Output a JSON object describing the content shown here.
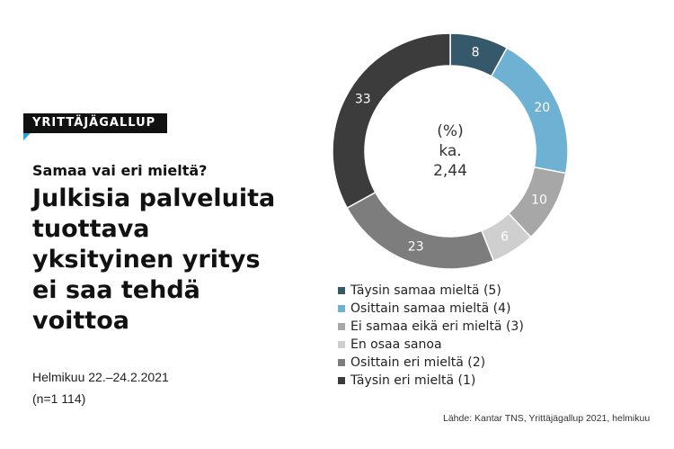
{
  "badge": "YRITTÄJÄGALLUP",
  "subtitle": "Samaa vai eri mieltä?",
  "title": "Julkisia palveluita tuottava yksityinen yritys ei saa tehdä voittoa",
  "date": "Helmikuu 22.–24.2.2021",
  "sample": "(n=1 114)",
  "source": "Lähde: Kantar TNS, Yrittäjägallup 2021, helmikuu",
  "colors": {
    "badge_accent": "#2f9fd8"
  },
  "chart_data": {
    "type": "pie",
    "subtype": "donut",
    "unit": "%",
    "center_text": [
      "(%)",
      "ka.",
      "2,44"
    ],
    "categories": [
      "Täysin samaa mieltä (5)",
      "Osittain samaa mieltä (4)",
      "Ei samaa eikä eri mieltä (3)",
      "En osaa sanoa",
      "Osittain eri mieltä (2)",
      "Täysin eri mieltä (1)"
    ],
    "values": [
      8,
      20,
      10,
      6,
      23,
      33
    ],
    "colors": [
      "#35586b",
      "#6eb1d2",
      "#a7a7a7",
      "#cfcfcf",
      "#7d7d7d",
      "#3c3c3c"
    ],
    "label_colors": [
      "#ffffff",
      "#ffffff",
      "#ffffff",
      "#ffffff",
      "#ffffff",
      "#ffffff"
    ],
    "legend_position": "bottom"
  }
}
